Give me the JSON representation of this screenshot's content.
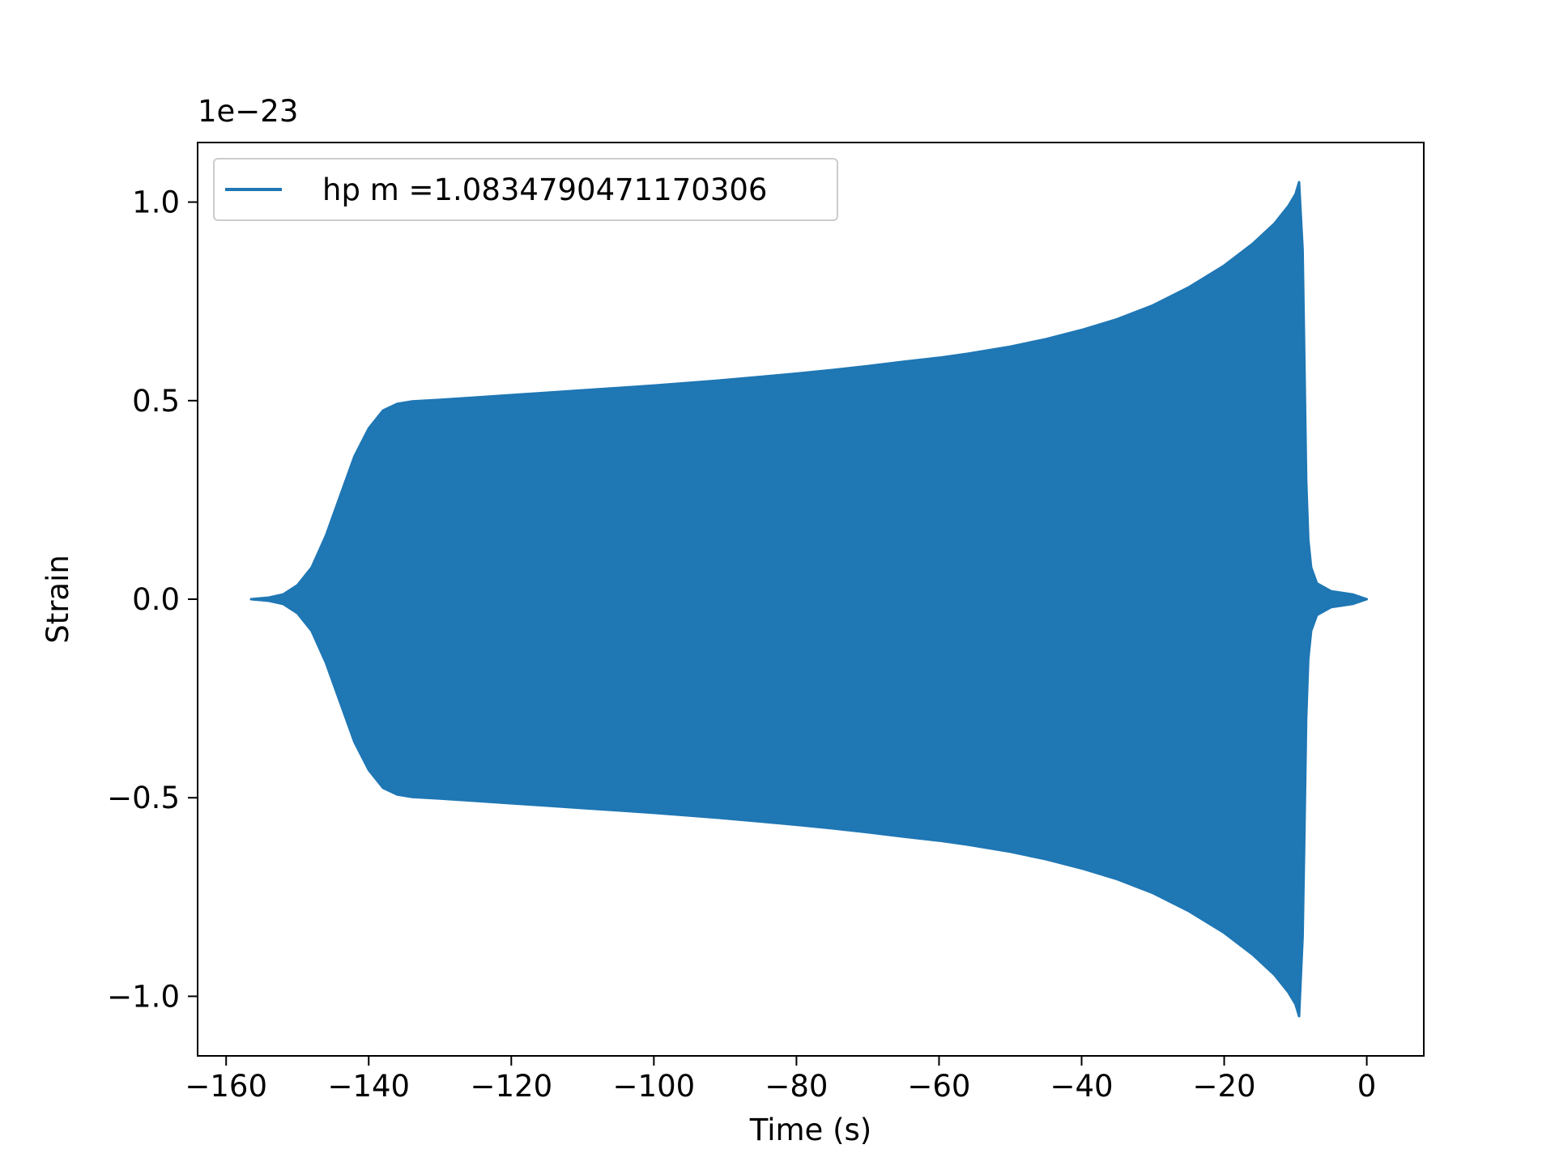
{
  "chart_data": {
    "type": "line",
    "xlabel": "Time (s)",
    "ylabel": "Strain",
    "y_offset_text": "1e−23",
    "xlim": [
      -164,
      8
    ],
    "ylim": [
      -1.15,
      1.15
    ],
    "grid": false,
    "legend_position": "upper-left",
    "x_ticks": [
      -160,
      -140,
      -120,
      -100,
      -80,
      -60,
      -40,
      -20,
      0
    ],
    "x_tick_labels": [
      "−160",
      "−140",
      "−120",
      "−100",
      "−80",
      "−60",
      "−40",
      "−20",
      "0"
    ],
    "y_ticks": [
      -1.0,
      -0.5,
      0.0,
      0.5,
      1.0
    ],
    "y_tick_labels": [
      "−1.0",
      "−0.5",
      "0.0",
      "0.5",
      "1.0"
    ],
    "series": [
      {
        "name": "hp m =1.0834790471170306",
        "color": "#1f77b4",
        "envelope_upper": [
          [
            -156.5,
            0.0
          ],
          [
            -154,
            0.004
          ],
          [
            -152,
            0.012
          ],
          [
            -150,
            0.035
          ],
          [
            -148,
            0.08
          ],
          [
            -146,
            0.16
          ],
          [
            -144,
            0.26
          ],
          [
            -142,
            0.36
          ],
          [
            -140,
            0.43
          ],
          [
            -138,
            0.475
          ],
          [
            -136,
            0.492
          ],
          [
            -134,
            0.498
          ],
          [
            -132,
            0.5
          ],
          [
            -130,
            0.502
          ],
          [
            -125,
            0.508
          ],
          [
            -120,
            0.514
          ],
          [
            -115,
            0.52
          ],
          [
            -110,
            0.526
          ],
          [
            -105,
            0.532
          ],
          [
            -100,
            0.538
          ],
          [
            -95,
            0.545
          ],
          [
            -90,
            0.552
          ],
          [
            -85,
            0.56
          ],
          [
            -80,
            0.568
          ],
          [
            -75,
            0.577
          ],
          [
            -70,
            0.587
          ],
          [
            -65,
            0.598
          ],
          [
            -60,
            0.608
          ],
          [
            -56,
            0.618
          ],
          [
            -50,
            0.636
          ],
          [
            -45,
            0.655
          ],
          [
            -40,
            0.678
          ],
          [
            -35,
            0.705
          ],
          [
            -30,
            0.74
          ],
          [
            -25,
            0.785
          ],
          [
            -20,
            0.84
          ],
          [
            -16,
            0.895
          ],
          [
            -13,
            0.945
          ],
          [
            -11,
            0.99
          ],
          [
            -10,
            1.02
          ],
          [
            -9.5,
            1.05
          ],
          [
            -9.0,
            0.88
          ],
          [
            -8.8,
            0.66
          ],
          [
            -8.5,
            0.3
          ],
          [
            -8.2,
            0.15
          ],
          [
            -7.8,
            0.08
          ],
          [
            -7,
            0.04
          ],
          [
            -5,
            0.02
          ],
          [
            -2,
            0.012
          ],
          [
            0,
            0.0
          ]
        ],
        "envelope_lower": [
          [
            -156.5,
            0.0
          ],
          [
            -154,
            -0.004
          ],
          [
            -152,
            -0.012
          ],
          [
            -150,
            -0.035
          ],
          [
            -148,
            -0.08
          ],
          [
            -146,
            -0.16
          ],
          [
            -144,
            -0.26
          ],
          [
            -142,
            -0.36
          ],
          [
            -140,
            -0.43
          ],
          [
            -138,
            -0.475
          ],
          [
            -136,
            -0.492
          ],
          [
            -134,
            -0.498
          ],
          [
            -132,
            -0.5
          ],
          [
            -130,
            -0.502
          ],
          [
            -125,
            -0.508
          ],
          [
            -120,
            -0.514
          ],
          [
            -115,
            -0.52
          ],
          [
            -110,
            -0.526
          ],
          [
            -105,
            -0.532
          ],
          [
            -100,
            -0.538
          ],
          [
            -95,
            -0.545
          ],
          [
            -90,
            -0.552
          ],
          [
            -85,
            -0.56
          ],
          [
            -80,
            -0.568
          ],
          [
            -75,
            -0.577
          ],
          [
            -70,
            -0.587
          ],
          [
            -65,
            -0.598
          ],
          [
            -60,
            -0.608
          ],
          [
            -56,
            -0.618
          ],
          [
            -50,
            -0.636
          ],
          [
            -45,
            -0.655
          ],
          [
            -40,
            -0.678
          ],
          [
            -35,
            -0.705
          ],
          [
            -30,
            -0.74
          ],
          [
            -25,
            -0.785
          ],
          [
            -20,
            -0.84
          ],
          [
            -16,
            -0.895
          ],
          [
            -13,
            -0.945
          ],
          [
            -11,
            -0.99
          ],
          [
            -10,
            -1.02
          ],
          [
            -9.5,
            -1.05
          ],
          [
            -9.0,
            -0.85
          ],
          [
            -8.8,
            -0.65
          ],
          [
            -8.5,
            -0.3
          ],
          [
            -8.2,
            -0.15
          ],
          [
            -7.8,
            -0.08
          ],
          [
            -7,
            -0.04
          ],
          [
            -5,
            -0.02
          ],
          [
            -2,
            -0.012
          ],
          [
            0,
            0.0
          ]
        ]
      }
    ]
  }
}
